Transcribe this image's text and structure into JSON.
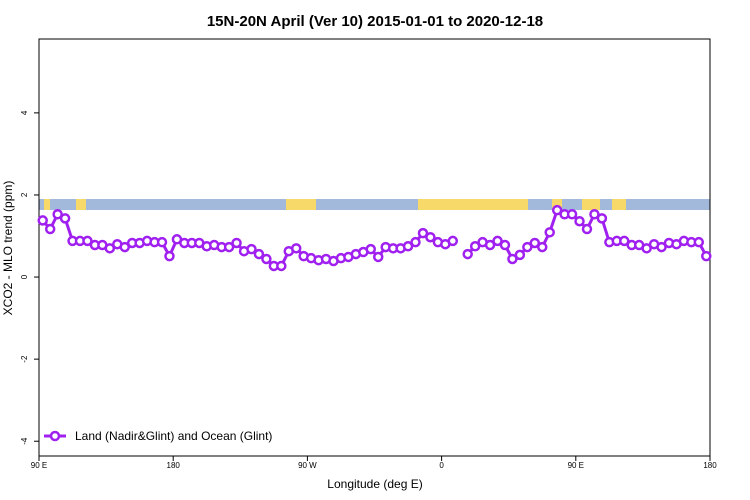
{
  "chart_data": {
    "type": "line",
    "title": "15N-20N April (Ver 10)   2015-01-01 to 2020-12-18",
    "xlabel": "Longitude (deg E)",
    "ylabel": "XCO2 - MLO trend (ppm)",
    "x": [
      92.5,
      97.5,
      102.5,
      107.5,
      112.5,
      117.5,
      122.5,
      127.5,
      132.5,
      137.5,
      142.5,
      147.5,
      152.5,
      157.5,
      162.5,
      167.5,
      172.5,
      177.5,
      182.5,
      187.5,
      192.5,
      197.5,
      202.5,
      207.5,
      212.5,
      217.5,
      222.5,
      227.5,
      232.5,
      237.5,
      242.5,
      247.5,
      252.5,
      257.5,
      262.5,
      267.5,
      272.5,
      277.5,
      282.5,
      287.5,
      292.5,
      297.5,
      302.5,
      307.5,
      312.5,
      317.5,
      322.5,
      327.5,
      332.5,
      337.5,
      342.5,
      347.5,
      352.5,
      357.5,
      362.5,
      367.5,
      372.5,
      377.5,
      382.5,
      387.5,
      392.5,
      397.5,
      402.5,
      407.5,
      412.5,
      417.5,
      422.5,
      427.5,
      432.5,
      437.5,
      442.5,
      447.5,
      452.5,
      457.5,
      462.5,
      467.5,
      472.5,
      477.5,
      482.5,
      487.5,
      492.5,
      497.5,
      502.5,
      507.5,
      512.5,
      517.5,
      522.5,
      527.5,
      532.5,
      537.5
    ],
    "series": [
      {
        "name": "Land (Nadir&Glint) and Ocean (Glint)",
        "color": "#a020f0",
        "values": [
          1.38,
          1.17,
          1.53,
          1.43,
          0.88,
          0.88,
          0.88,
          0.78,
          0.78,
          0.7,
          0.8,
          0.73,
          0.83,
          0.83,
          0.88,
          0.85,
          0.85,
          0.51,
          0.92,
          0.83,
          0.83,
          0.83,
          0.75,
          0.78,
          0.73,
          0.73,
          0.83,
          0.63,
          0.68,
          0.56,
          0.44,
          0.27,
          0.27,
          0.63,
          0.7,
          0.51,
          0.46,
          0.41,
          0.44,
          0.39,
          0.46,
          0.49,
          0.56,
          0.61,
          0.68,
          0.49,
          0.73,
          0.7,
          0.7,
          0.75,
          0.85,
          1.07,
          0.97,
          0.85,
          0.8,
          0.88,
          null,
          0.56,
          0.75,
          0.85,
          0.78,
          0.88,
          0.78,
          0.44,
          0.54,
          0.73,
          0.83,
          0.73,
          1.09,
          1.63,
          1.53,
          1.53,
          1.36,
          1.17,
          1.53,
          1.43,
          0.85,
          0.88,
          0.88,
          0.78,
          0.78,
          0.7,
          0.8,
          0.73,
          0.83,
          0.8,
          0.88,
          0.85,
          0.85,
          0.51
        ]
      }
    ],
    "xlim": [
      90,
      540
    ],
    "xticks": [
      {
        "value": 90,
        "label": "90 E"
      },
      180,
      {
        "value": 270,
        "label": "90 W"
      },
      {
        "value": 360,
        "label": "0"
      },
      {
        "value": 450,
        "label": "90 E"
      },
      {
        "value": 540,
        "label": "180"
      }
    ],
    "ylim": [
      -4.36,
      5.8
    ],
    "yticks": [
      -4,
      -2,
      0,
      2,
      4
    ],
    "legend": "bottom-left"
  }
}
